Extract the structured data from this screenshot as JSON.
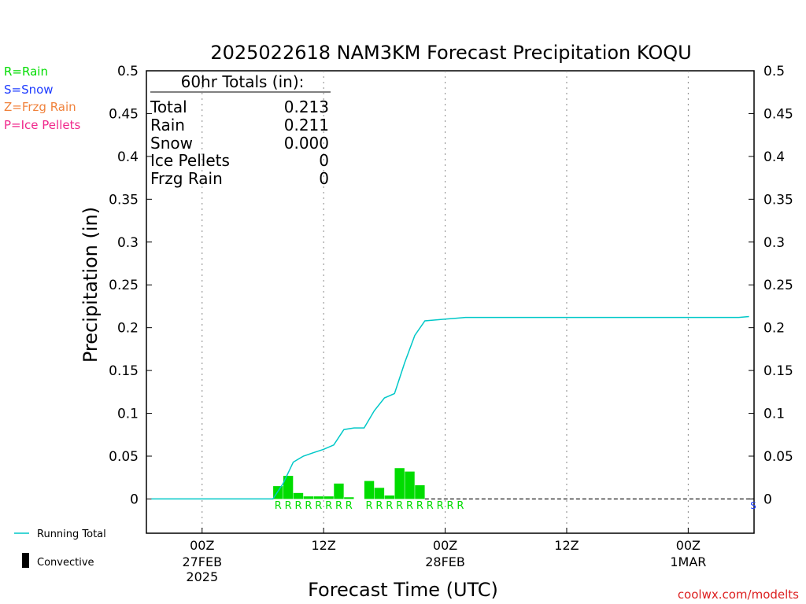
{
  "chart_data": {
    "type": "bar",
    "title": "2025022618 NAM3KM Forecast Precipitation KOQU",
    "xlabel": "Forecast Time (UTC)",
    "ylabel": "Precipitation (in)",
    "ylim": [
      -0.04,
      0.5
    ],
    "yticks": [
      0,
      0.05,
      0.1,
      0.15,
      0.2,
      0.25,
      0.3,
      0.35,
      0.4,
      0.45,
      0.5
    ],
    "ytick_labels": [
      "0",
      "0.05",
      "0.1",
      "0.15",
      "0.2",
      "0.25",
      "0.3",
      "0.35",
      "0.4",
      "0.45",
      "0.5"
    ],
    "xlim_hours": [
      -5.5,
      54.5
    ],
    "xticks": [
      {
        "hour": 0,
        "label": "00Z",
        "label2": "27FEB",
        "label3": "2025"
      },
      {
        "hour": 12,
        "label": "12Z",
        "label2": "",
        "label3": ""
      },
      {
        "hour": 24,
        "label": "00Z",
        "label2": "28FEB",
        "label3": ""
      },
      {
        "hour": 36,
        "label": "12Z",
        "label2": "",
        "label3": ""
      },
      {
        "hour": 48,
        "label": "00Z",
        "label2": "1MAR",
        "label3": ""
      }
    ],
    "grid": "vertical-dotted",
    "totals": {
      "heading": "60hr Totals (in):",
      "rows": [
        {
          "label": "Total",
          "value": "0.213"
        },
        {
          "label": "Rain",
          "value": "0.211"
        },
        {
          "label": "Snow",
          "value": "0.000"
        },
        {
          "label": "Ice Pellets",
          "value": "0"
        },
        {
          "label": "Frzg Rain",
          "value": "0"
        }
      ]
    },
    "precip_legend": [
      {
        "text": "R=Rain",
        "color": "#00dc00"
      },
      {
        "text": "S=Snow",
        "color": "#1e3cff"
      },
      {
        "text": "Z=Frzg Rain",
        "color": "#f0823c"
      },
      {
        "text": "P=Ice Pellets",
        "color": "#f0288c"
      }
    ],
    "series_legend": [
      {
        "text": "Running Total",
        "color": "#00c8c8",
        "kind": "line"
      },
      {
        "text": "Convective",
        "color": "#000000",
        "kind": "bar"
      }
    ],
    "bar_series": {
      "name": "",
      "color": "#00dc00",
      "x": [
        7.5,
        8.5,
        9.5,
        10.5,
        11.5,
        12.5,
        13.5,
        14.5,
        16.5,
        17.5,
        18.5,
        19.5,
        20.5,
        21.5
      ],
      "values": [
        0.015,
        0.027,
        0.007,
        0.003,
        0.003,
        0.003,
        0.018,
        0.002,
        0.021,
        0.013,
        0.004,
        0.036,
        0.032,
        0.016
      ]
    },
    "running_total": {
      "name": "Running Total",
      "color": "#00c8c8",
      "x": [
        -5,
        7,
        8,
        9,
        10,
        11,
        12,
        13,
        14,
        15,
        16,
        17,
        18,
        19,
        20,
        21,
        22,
        23,
        24,
        25,
        26,
        30,
        36,
        42,
        48,
        53,
        54
      ],
      "values": [
        0,
        0,
        0.018,
        0.043,
        0.05,
        0.054,
        0.058,
        0.063,
        0.081,
        0.083,
        0.083,
        0.103,
        0.118,
        0.123,
        0.159,
        0.191,
        0.208,
        0.209,
        0.21,
        0.211,
        0.212,
        0.212,
        0.212,
        0.212,
        0.212,
        0.212,
        0.213
      ]
    },
    "precip_type_markers": {
      "text": "R",
      "color": "#00dc00",
      "x": [
        7.5,
        8.5,
        9.5,
        10.5,
        11.5,
        12.5,
        13.5,
        14.5,
        16.5,
        17.5,
        18.5,
        19.5,
        20.5,
        21.5,
        22.5,
        23.5,
        24.5,
        25.5
      ]
    },
    "snow_marker": {
      "text": "S",
      "color": "#1e3cff",
      "x": 54.5
    },
    "credit": "coolwx.com/modelts",
    "credit_color": "#dc1e1e"
  }
}
